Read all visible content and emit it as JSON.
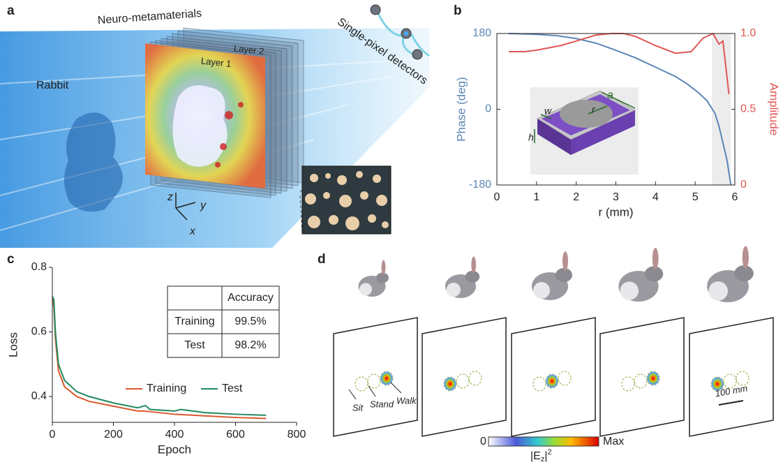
{
  "panel_labels": [
    "a",
    "b",
    "c",
    "d"
  ],
  "panel_a": {
    "title": "Neuro-metamaterials",
    "layer1": "Layer 1",
    "layer2": "Layer 2",
    "detectors": "Single-pixel detectors",
    "object": "Rabbit",
    "axes": [
      "z",
      "y",
      "x"
    ]
  },
  "inset_b": {
    "labels": [
      "a",
      "r",
      "w",
      "h"
    ]
  },
  "chart_data": [
    {
      "type": "line",
      "xlabel": "r (mm)",
      "ylabel": "Phase (deg)",
      "y2label": "Amplitude",
      "xlim": [
        0,
        6
      ],
      "xticks": [
        0,
        1,
        2,
        3,
        4,
        5,
        6
      ],
      "ylim": [
        -180,
        180
      ],
      "yticks": [
        -180,
        0,
        180
      ],
      "y2lim": [
        0,
        1
      ],
      "y2ticks": [
        0,
        0.5,
        {
          "value": 1,
          "label": "1.0"
        }
      ],
      "highlight_x": [
        5.42,
        5.9
      ],
      "series": [
        {
          "color": "#5a86b5",
          "x": [
            0.3,
            1,
            1.5,
            2,
            2.5,
            3,
            3.5,
            4,
            4.5,
            4.8,
            5.1,
            5.3,
            5.5,
            5.6,
            5.7,
            5.8,
            5.9
          ],
          "values": [
            180,
            178,
            175,
            168,
            157,
            140,
            122,
            100,
            78,
            60,
            38,
            20,
            -10,
            -40,
            -80,
            -120,
            -180
          ]
        },
        {
          "color": "#e05555",
          "axis": "y2",
          "x": [
            0.3,
            0.7,
            1,
            1.6,
            2,
            2.5,
            2.9,
            3.2,
            3.5,
            4,
            4.5,
            4.9,
            5.2,
            5.45,
            5.6,
            5.7,
            5.85
          ],
          "values": [
            0.88,
            0.88,
            0.89,
            0.92,
            0.95,
            0.99,
            1.0,
            1.0,
            0.98,
            0.92,
            0.87,
            0.88,
            0.97,
            1.0,
            0.93,
            0.95,
            0.6
          ]
        }
      ]
    },
    {
      "type": "line",
      "xlabel": "Epoch",
      "ylabel": "Loss",
      "xlim": [
        0,
        800
      ],
      "xticks": [
        0,
        200,
        400,
        600,
        800
      ],
      "ylim": [
        0.32,
        0.8
      ],
      "yticks": [
        0.4,
        0.6,
        0.8
      ],
      "series": [
        {
          "name": "Training",
          "color": "#d9582b",
          "x": [
            0,
            5,
            10,
            20,
            40,
            80,
            120,
            200,
            280,
            300,
            400,
            500,
            600,
            700
          ],
          "values": [
            0.7,
            0.68,
            0.58,
            0.48,
            0.43,
            0.4,
            0.385,
            0.37,
            0.355,
            0.355,
            0.345,
            0.34,
            0.335,
            0.332
          ]
        },
        {
          "name": "Test",
          "color": "#1f8a5c",
          "x": [
            0,
            5,
            10,
            20,
            40,
            80,
            120,
            200,
            280,
            305,
            320,
            400,
            420,
            500,
            600,
            700
          ],
          "values": [
            0.71,
            0.7,
            0.6,
            0.5,
            0.45,
            0.415,
            0.4,
            0.38,
            0.365,
            0.372,
            0.36,
            0.355,
            0.36,
            0.35,
            0.345,
            0.342
          ]
        }
      ],
      "table": {
        "column": "Accuracy",
        "rows": [
          [
            "Training",
            "99.5%"
          ],
          [
            "Test",
            "98.2%"
          ]
        ]
      }
    }
  ],
  "panel_d": {
    "states": [
      "Sit",
      "Stand",
      "Walk"
    ],
    "scale_bar": "100 mm",
    "colorbar": {
      "min": "0",
      "max": "Max",
      "label_base": "|E",
      "label_sub": "z",
      "label_end": "|",
      "label_sup": "2"
    }
  }
}
